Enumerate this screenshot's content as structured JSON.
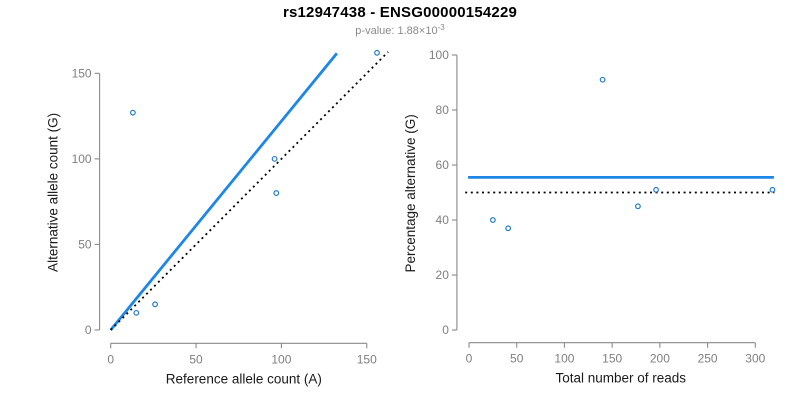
{
  "header": {
    "title": "rs12947438 - ENSG00000154229",
    "subtitle_prefix": "p-value: 1.88×10",
    "subtitle_exponent": "-3"
  },
  "colors": {
    "line_blue": "#1E87E5",
    "point_blue": "#2579C8",
    "dotted_black": "#000000",
    "axis_gray": "#8A8A8A",
    "tick_label_gray": "#7F7F7F",
    "axis_title_black": "#1A1A1A",
    "background": "#FFFFFF"
  },
  "chart_data": [
    {
      "type": "scatter",
      "name": "allele-counts-scatter",
      "xlabel": "Reference allele count (A)",
      "ylabel": "Alternative allele count (G)",
      "xticks": [
        0,
        50,
        100,
        150
      ],
      "yticks": [
        0,
        50,
        100,
        150
      ],
      "xlim": [
        -6.5,
        162.5
      ],
      "ylim": [
        -7.8,
        168.6
      ],
      "grid": false,
      "legend": "none",
      "points": [
        [
          13,
          127
        ],
        [
          15,
          10
        ],
        [
          26,
          15
        ],
        [
          96,
          100
        ],
        [
          97,
          80
        ],
        [
          156,
          162
        ]
      ],
      "lines": [
        {
          "name": "fitted-proportion-line",
          "style": "solid",
          "color_key": "line_blue",
          "x1": 0,
          "y1": 0,
          "x2": 132.5,
          "y2": 161.7,
          "width": 2.8
        },
        {
          "name": "identity-line",
          "style": "dotted",
          "color_key": "dotted_black",
          "x1": 0,
          "y1": 0,
          "x2": 162.5,
          "y2": 162.5,
          "width": 1.8
        }
      ]
    },
    {
      "type": "scatter",
      "name": "percentage-vs-reads-scatter",
      "xlabel": "Total number of reads",
      "ylabel": "Percentage alternative (G)",
      "xticks": [
        0,
        50,
        100,
        150,
        200,
        250,
        300
      ],
      "yticks": [
        0,
        20,
        40,
        60,
        80,
        100
      ],
      "xlim": [
        -12.7,
        330.7
      ],
      "ylim": [
        -4.6,
        104
      ],
      "grid": false,
      "legend": "none",
      "points": [
        [
          25,
          40
        ],
        [
          41,
          37
        ],
        [
          140,
          91
        ],
        [
          177,
          45
        ],
        [
          196,
          51
        ],
        [
          318,
          51
        ]
      ],
      "lines": [
        {
          "name": "estimated-proportion-line",
          "style": "solid",
          "color_key": "line_blue",
          "x1": -1,
          "y1": 55.5,
          "x2": 319.5,
          "y2": 55.5,
          "width": 2.8
        },
        {
          "name": "expected-proportion-line",
          "style": "dotted",
          "color_key": "dotted_black",
          "x1": -4,
          "y1": 50,
          "x2": 320,
          "y2": 50,
          "width": 1.8
        }
      ]
    }
  ]
}
